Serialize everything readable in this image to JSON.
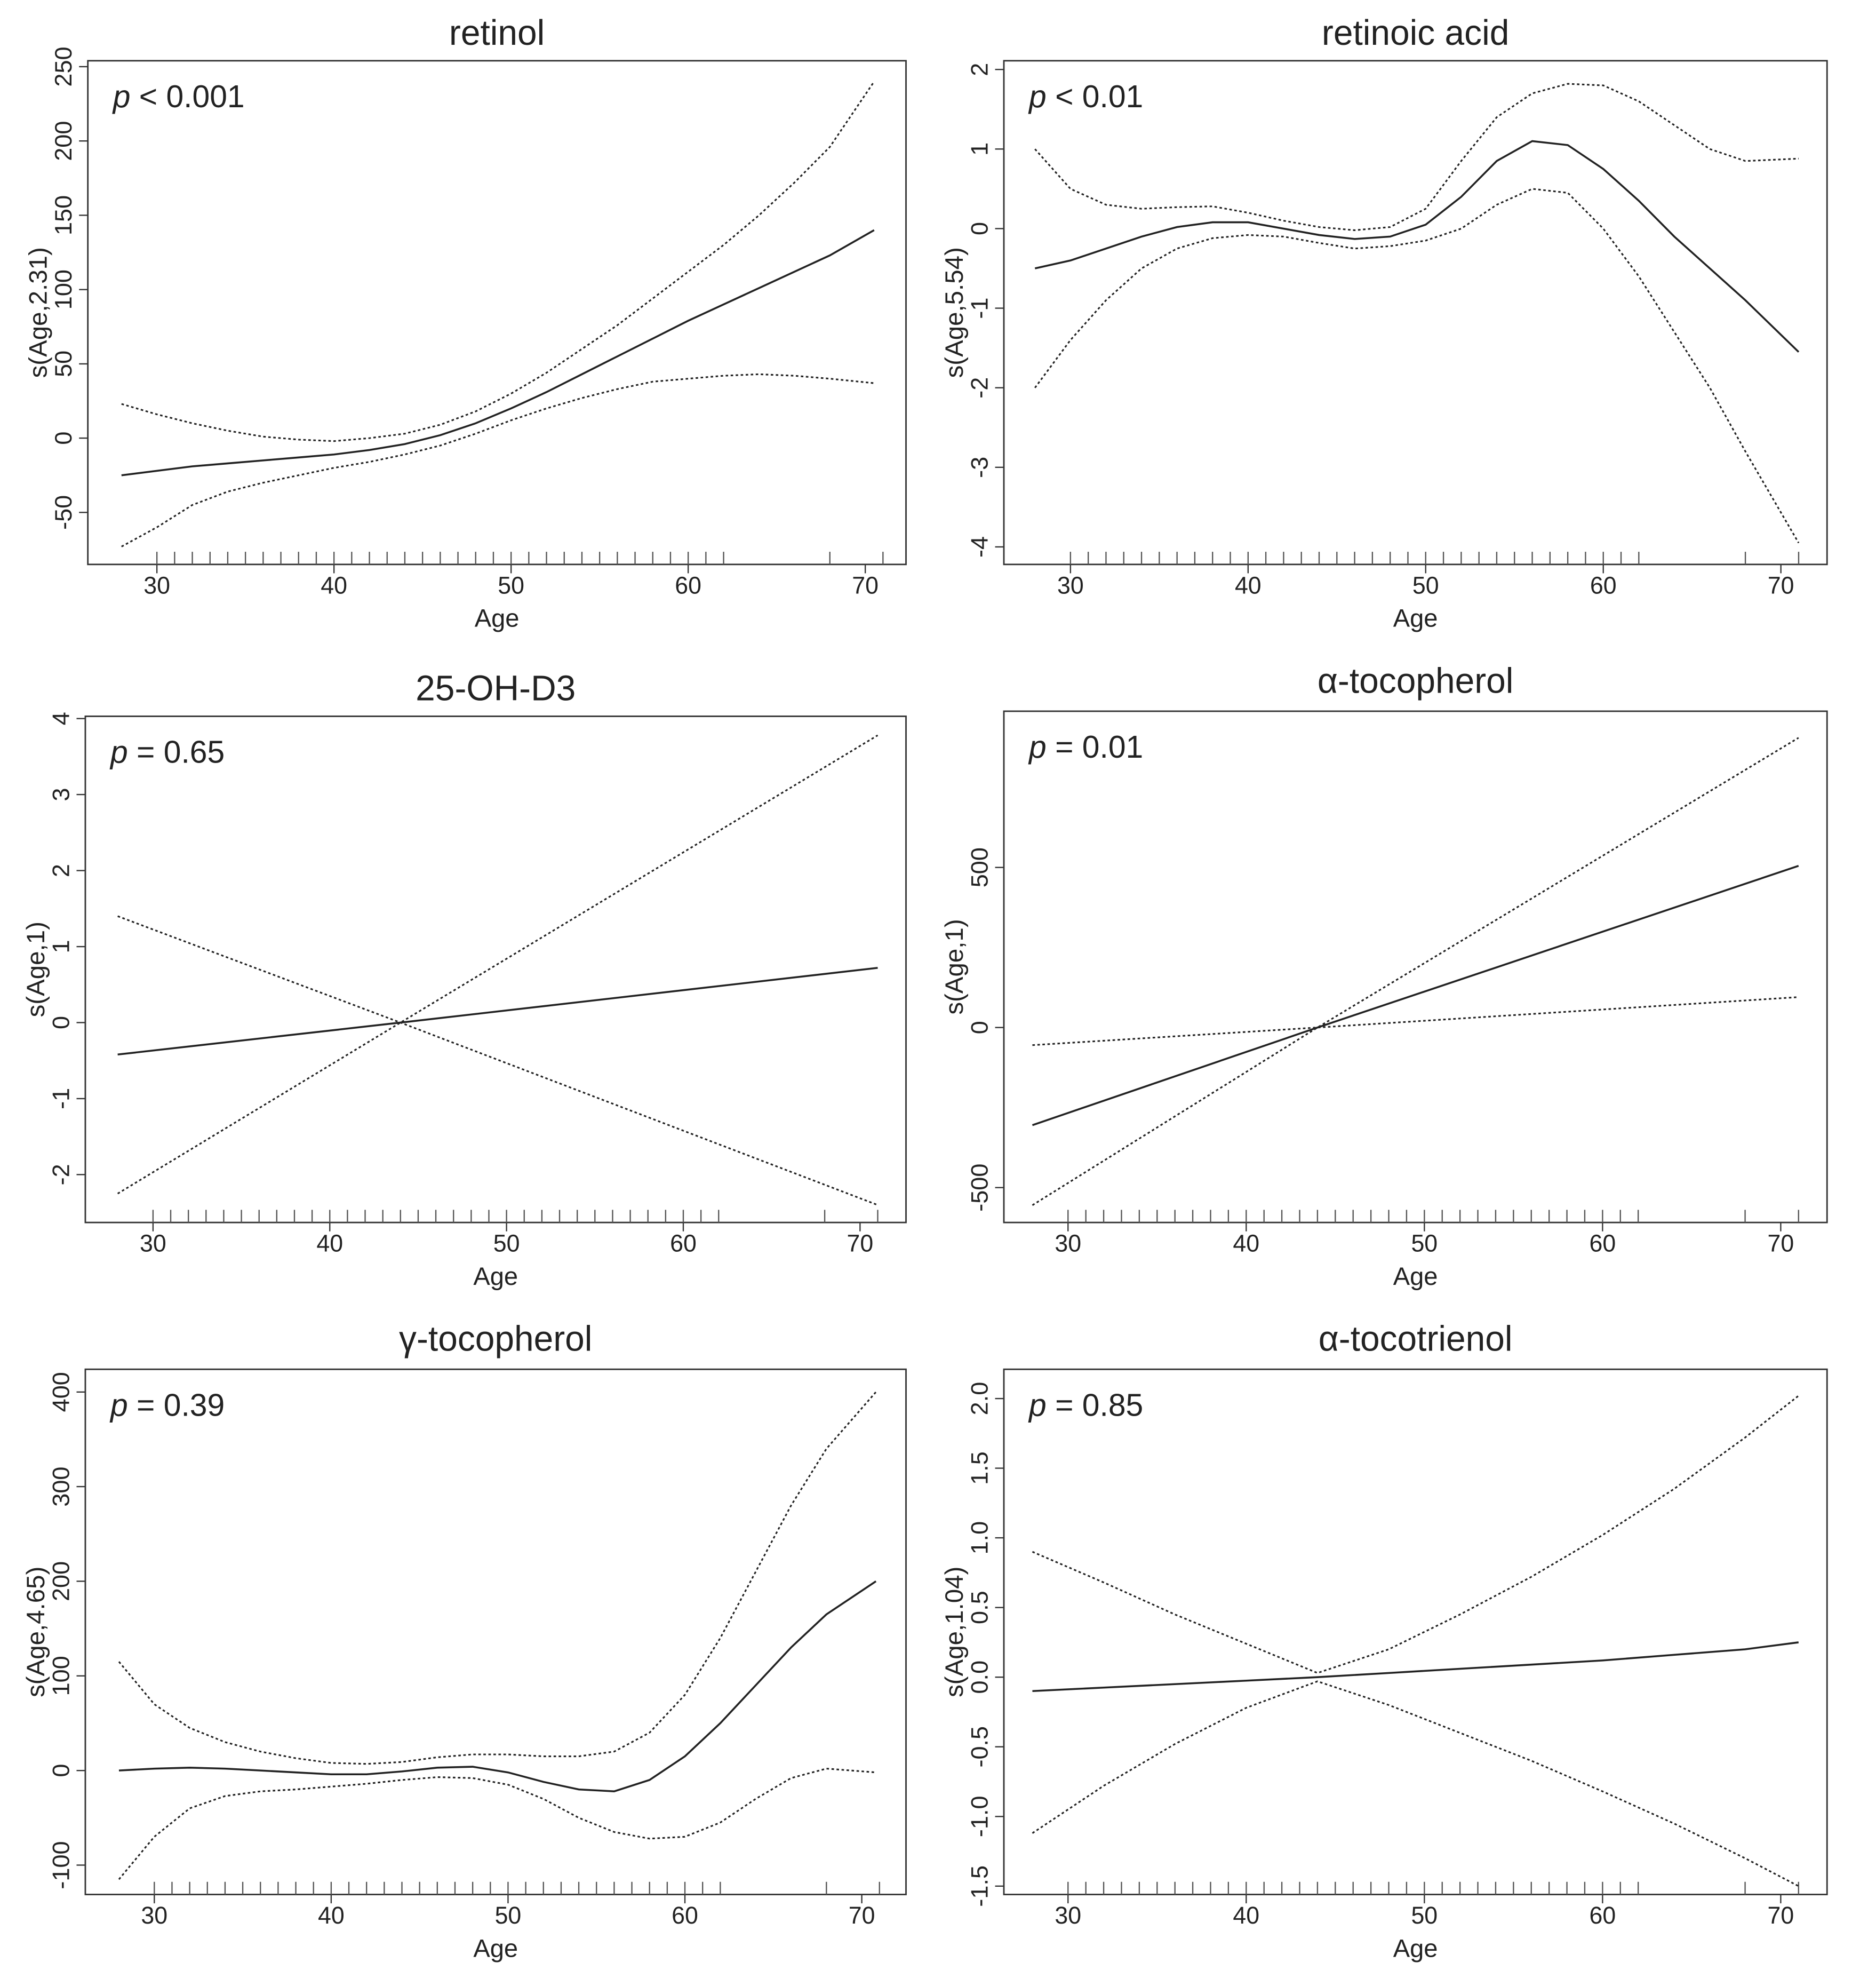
{
  "chart_data": [
    {
      "type": "line",
      "title": "retinol",
      "annotation_symbol": "p",
      "annotation": "< 0.001",
      "xlabel": "Age",
      "ylabel": "s(Age,2.31)",
      "xlim": [
        26.1,
        72.3
      ],
      "ylim": [
        -85,
        254
      ],
      "xticks": [
        30,
        40,
        50,
        60,
        70
      ],
      "yticks": [
        -50,
        0,
        50,
        100,
        150,
        200,
        250
      ],
      "x": [
        28,
        30,
        32,
        34,
        36,
        38,
        40,
        42,
        44,
        46,
        48,
        50,
        52,
        54,
        56,
        58,
        60,
        62,
        64,
        66,
        68,
        70.5
      ],
      "series": [
        {
          "color": "#222222",
          "dash": false,
          "values": [
            -25,
            -22,
            -19,
            -17,
            -15,
            -13,
            -11,
            -8,
            -4,
            2,
            10,
            20,
            31,
            43,
            55,
            67,
            79,
            90,
            101,
            112,
            123,
            140
          ]
        },
        {
          "color": "#222222",
          "dash": true,
          "values": [
            23,
            16,
            10,
            5,
            1,
            -1,
            -2,
            0,
            3,
            9,
            18,
            30,
            44,
            60,
            76,
            94,
            112,
            130,
            150,
            172,
            196,
            240
          ]
        },
        {
          "color": "#222222",
          "dash": true,
          "values": [
            -73,
            -60,
            -45,
            -36,
            -30,
            -25,
            -20,
            -16,
            -11,
            -5,
            3,
            12,
            20,
            27,
            33,
            38,
            40,
            42,
            43,
            42,
            40,
            37
          ]
        }
      ],
      "rug": [
        30,
        31,
        32,
        33,
        34,
        35,
        36,
        37,
        38,
        39,
        40,
        41,
        42,
        43,
        44,
        45,
        46,
        47,
        48,
        49,
        50,
        51,
        52,
        53,
        54,
        55,
        56,
        57,
        58,
        59,
        60,
        61,
        62,
        68,
        71
      ]
    },
    {
      "type": "line",
      "title": "retinoic acid",
      "annotation_symbol": "p",
      "annotation": "< 0.01",
      "xlabel": "Age",
      "ylabel": "s(Age,5.54)",
      "xlim": [
        26.25,
        72.6
      ],
      "ylim": [
        -4.22,
        2.11
      ],
      "xticks": [
        30,
        40,
        50,
        60,
        70
      ],
      "yticks": [
        -4,
        -3,
        -2,
        -1,
        0,
        1,
        2
      ],
      "x": [
        28,
        30,
        32,
        34,
        36,
        38,
        40,
        42,
        44,
        46,
        48,
        50,
        52,
        54,
        56,
        58,
        60,
        62,
        64,
        66,
        68,
        71
      ],
      "series": [
        {
          "color": "#222222",
          "dash": false,
          "values": [
            -0.5,
            -0.4,
            -0.25,
            -0.1,
            0.02,
            0.08,
            0.08,
            0.0,
            -0.08,
            -0.13,
            -0.1,
            0.05,
            0.4,
            0.85,
            1.1,
            1.05,
            0.75,
            0.35,
            -0.1,
            -0.5,
            -0.9,
            -1.55
          ]
        },
        {
          "color": "#222222",
          "dash": true,
          "values": [
            1.0,
            0.5,
            0.3,
            0.25,
            0.27,
            0.28,
            0.2,
            0.1,
            0.02,
            -0.02,
            0.02,
            0.25,
            0.85,
            1.4,
            1.7,
            1.82,
            1.8,
            1.6,
            1.3,
            1.0,
            0.85,
            0.88
          ]
        },
        {
          "color": "#222222",
          "dash": true,
          "values": [
            -2.0,
            -1.4,
            -0.9,
            -0.5,
            -0.25,
            -0.12,
            -0.08,
            -0.1,
            -0.18,
            -0.25,
            -0.22,
            -0.15,
            0.0,
            0.3,
            0.5,
            0.45,
            0.0,
            -0.6,
            -1.3,
            -2.0,
            -2.8,
            -3.95
          ]
        }
      ],
      "rug": [
        30,
        31,
        32,
        33,
        34,
        35,
        36,
        37,
        38,
        39,
        40,
        41,
        42,
        43,
        44,
        45,
        46,
        47,
        48,
        49,
        50,
        51,
        52,
        53,
        54,
        55,
        56,
        57,
        58,
        59,
        60,
        61,
        62,
        68,
        71
      ]
    },
    {
      "type": "line",
      "title": "25-OH-D3",
      "annotation_symbol": "p",
      "annotation": "= 0.65",
      "xlabel": "Age",
      "ylabel": "s(Age,1)",
      "xlim": [
        26.17,
        72.6
      ],
      "ylim": [
        -2.63,
        4.03
      ],
      "xticks": [
        30,
        40,
        50,
        60,
        70
      ],
      "yticks": [
        -2,
        -1,
        0,
        1,
        2,
        3,
        4
      ],
      "x": [
        28,
        44,
        71
      ],
      "series": [
        {
          "color": "#222222",
          "dash": false,
          "values": [
            -0.42,
            0,
            0.72
          ]
        },
        {
          "color": "#222222",
          "dash": true,
          "values": [
            -2.25,
            0,
            3.78
          ]
        },
        {
          "color": "#222222",
          "dash": true,
          "values": [
            1.4,
            0,
            -2.4
          ]
        }
      ],
      "rug": [
        30,
        31,
        32,
        33,
        34,
        35,
        36,
        37,
        38,
        39,
        40,
        41,
        42,
        43,
        44,
        45,
        46,
        47,
        48,
        49,
        50,
        51,
        52,
        53,
        54,
        55,
        56,
        57,
        58,
        59,
        60,
        61,
        62,
        68,
        71
      ]
    },
    {
      "type": "line",
      "title": "α-tocopherol",
      "annotation_symbol": "p",
      "annotation": "= 0.01",
      "xlabel": "Age",
      "ylabel": "s(Age,1)",
      "xlim": [
        26.4,
        72.6
      ],
      "ylim": [
        -609,
        988
      ],
      "xticks": [
        30,
        40,
        50,
        60,
        70
      ],
      "yticks": [
        -500,
        0,
        500
      ],
      "x": [
        28,
        44,
        71
      ],
      "series": [
        {
          "color": "#222222",
          "dash": false,
          "values": [
            -305,
            0,
            505
          ]
        },
        {
          "color": "#222222",
          "dash": true,
          "values": [
            -555,
            0,
            905
          ]
        },
        {
          "color": "#222222",
          "dash": true,
          "values": [
            -55,
            0,
            95
          ]
        }
      ],
      "rug": [
        30,
        31,
        32,
        33,
        34,
        35,
        36,
        37,
        38,
        39,
        40,
        41,
        42,
        43,
        44,
        45,
        46,
        47,
        48,
        49,
        50,
        51,
        52,
        53,
        54,
        55,
        56,
        57,
        58,
        59,
        60,
        61,
        62,
        68,
        71
      ]
    },
    {
      "type": "line",
      "title": "γ-tocopherol",
      "annotation_symbol": "p",
      "annotation": "= 0.39",
      "xlabel": "Age",
      "ylabel": "s(Age,4.65)",
      "xlim": [
        26.1,
        72.5
      ],
      "ylim": [
        -131,
        424
      ],
      "xticks": [
        30,
        40,
        50,
        60,
        70
      ],
      "yticks": [
        -100,
        0,
        100,
        200,
        300,
        400
      ],
      "x": [
        28,
        30,
        32,
        34,
        36,
        38,
        40,
        42,
        44,
        46,
        48,
        50,
        52,
        54,
        56,
        58,
        60,
        62,
        64,
        66,
        68,
        70.8
      ],
      "series": [
        {
          "color": "#222222",
          "dash": false,
          "values": [
            0,
            2,
            3,
            2,
            0,
            -2,
            -4,
            -4,
            -1,
            3,
            4,
            -2,
            -12,
            -20,
            -22,
            -10,
            15,
            50,
            90,
            130,
            165,
            200
          ]
        },
        {
          "color": "#222222",
          "dash": true,
          "values": [
            115,
            70,
            45,
            30,
            20,
            13,
            8,
            7,
            9,
            14,
            17,
            17,
            15,
            15,
            20,
            40,
            80,
            140,
            210,
            280,
            340,
            400
          ]
        },
        {
          "color": "#222222",
          "dash": true,
          "values": [
            -115,
            -70,
            -40,
            -27,
            -22,
            -20,
            -17,
            -14,
            -10,
            -7,
            -8,
            -15,
            -30,
            -50,
            -65,
            -72,
            -70,
            -55,
            -30,
            -8,
            2,
            -2
          ]
        }
      ],
      "rug": [
        30,
        31,
        32,
        33,
        34,
        35,
        36,
        37,
        38,
        39,
        40,
        41,
        42,
        43,
        44,
        45,
        46,
        47,
        48,
        49,
        50,
        51,
        52,
        53,
        54,
        55,
        56,
        57,
        58,
        59,
        60,
        61,
        62,
        68,
        71
      ]
    },
    {
      "type": "line",
      "title": "α-tocotrienol",
      "annotation_symbol": "p",
      "annotation": "= 0.85",
      "xlabel": "Age",
      "ylabel": "s(Age,1.04)",
      "xlim": [
        26.4,
        72.6
      ],
      "ylim": [
        -1.56,
        2.21
      ],
      "xticks": [
        30,
        40,
        50,
        60,
        70
      ],
      "yticks": [
        -1.5,
        {
          "value": -1,
          "label": "-1.0"
        },
        -0.5,
        {
          "value": 0,
          "label": "0.0"
        },
        0.5,
        {
          "value": 1,
          "label": "1.0"
        },
        1.5,
        {
          "value": 2,
          "label": "2.0"
        }
      ],
      "x": [
        28,
        32,
        36,
        40,
        44,
        48,
        52,
        56,
        60,
        64,
        68,
        71
      ],
      "series": [
        {
          "color": "#222222",
          "dash": false,
          "values": [
            -0.1,
            -0.075,
            -0.05,
            -0.025,
            0.0,
            0.03,
            0.06,
            0.09,
            0.12,
            0.16,
            0.2,
            0.25
          ]
        },
        {
          "color": "#222222",
          "dash": true,
          "values": [
            0.9,
            0.68,
            0.45,
            0.24,
            0.03,
            0.2,
            0.45,
            0.72,
            1.02,
            1.35,
            1.72,
            2.02
          ]
        },
        {
          "color": "#222222",
          "dash": true,
          "values": [
            -1.12,
            -0.78,
            -0.48,
            -0.22,
            -0.03,
            -0.2,
            -0.4,
            -0.6,
            -0.82,
            -1.05,
            -1.3,
            -1.5
          ]
        }
      ],
      "rug": [
        30,
        31,
        32,
        33,
        34,
        35,
        36,
        37,
        38,
        39,
        40,
        41,
        42,
        43,
        44,
        45,
        46,
        47,
        48,
        49,
        50,
        51,
        52,
        53,
        54,
        55,
        56,
        57,
        58,
        59,
        60,
        61,
        62,
        68,
        71
      ]
    }
  ]
}
